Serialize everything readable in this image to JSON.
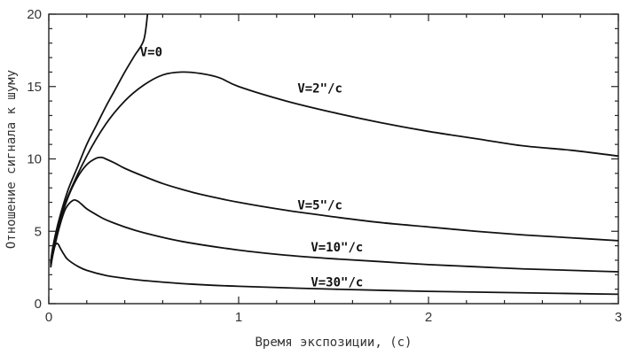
{
  "chart_data": {
    "type": "line",
    "title": "",
    "xlabel": "Время экспозиции, (с)",
    "ylabel": "Отношение сигнала к шуму",
    "xlim": [
      0,
      3
    ],
    "ylim": [
      0,
      20
    ],
    "x_ticks": [
      "0",
      "1",
      "2",
      "3"
    ],
    "y_ticks": [
      "0",
      "5",
      "10",
      "15",
      "20"
    ],
    "grid": false,
    "legend": "none",
    "series": [
      {
        "name": "V=0",
        "x": [
          0.01,
          0.02,
          0.05,
          0.1,
          0.15,
          0.2,
          0.25,
          0.3,
          0.35,
          0.4,
          0.45,
          0.5,
          0.52
        ],
        "y": [
          2.8,
          3.8,
          5.6,
          7.8,
          9.4,
          11.0,
          12.3,
          13.6,
          14.8,
          16.0,
          17.1,
          18.2,
          20.0
        ]
      },
      {
        "name": "V=2\"/с",
        "x": [
          0.01,
          0.02,
          0.05,
          0.1,
          0.2,
          0.3,
          0.4,
          0.5,
          0.6,
          0.7,
          0.8,
          0.9,
          1.0,
          1.25,
          1.5,
          1.75,
          2.0,
          2.25,
          2.5,
          2.75,
          3.0
        ],
        "y": [
          2.8,
          3.7,
          5.4,
          7.4,
          10.2,
          12.4,
          14.0,
          15.1,
          15.8,
          16.0,
          15.9,
          15.6,
          15.0,
          14.0,
          13.2,
          12.5,
          11.9,
          11.4,
          10.9,
          10.6,
          10.2
        ]
      },
      {
        "name": "V=5\"/с",
        "x": [
          0.01,
          0.02,
          0.05,
          0.1,
          0.15,
          0.2,
          0.25,
          0.28,
          0.3,
          0.35,
          0.4,
          0.5,
          0.6,
          0.7,
          0.8,
          1.0,
          1.25,
          1.5,
          1.75,
          2.0,
          2.25,
          2.5,
          2.75,
          3.0
        ],
        "y": [
          2.7,
          3.5,
          5.3,
          7.3,
          8.7,
          9.6,
          10.05,
          10.1,
          10.0,
          9.7,
          9.35,
          8.8,
          8.3,
          7.9,
          7.55,
          7.0,
          6.45,
          6.0,
          5.6,
          5.3,
          5.0,
          4.75,
          4.55,
          4.35
        ]
      },
      {
        "name": "V=10\"/с",
        "x": [
          0.01,
          0.02,
          0.05,
          0.08,
          0.1,
          0.13,
          0.15,
          0.17,
          0.2,
          0.25,
          0.3,
          0.4,
          0.5,
          0.7,
          1.0,
          1.25,
          1.5,
          1.75,
          2.0,
          2.25,
          2.5,
          2.75,
          3.0
        ],
        "y": [
          2.6,
          3.3,
          5.0,
          6.3,
          6.8,
          7.15,
          7.1,
          6.9,
          6.55,
          6.15,
          5.8,
          5.3,
          4.9,
          4.3,
          3.7,
          3.35,
          3.1,
          2.9,
          2.7,
          2.55,
          2.4,
          2.3,
          2.2
        ]
      },
      {
        "name": "V=30\"/с",
        "x": [
          0.01,
          0.02,
          0.03,
          0.04,
          0.05,
          0.06,
          0.08,
          0.1,
          0.15,
          0.2,
          0.3,
          0.4,
          0.5,
          0.75,
          1.0,
          1.5,
          2.0,
          2.5,
          3.0
        ],
        "y": [
          2.5,
          3.3,
          3.9,
          4.15,
          4.1,
          3.85,
          3.4,
          3.05,
          2.6,
          2.3,
          1.95,
          1.75,
          1.6,
          1.35,
          1.2,
          1.0,
          0.85,
          0.75,
          0.65
        ]
      }
    ],
    "series_labels": [
      {
        "text": "V=0",
        "at_x": 0.48,
        "at_y": 17.1
      },
      {
        "text": "V=2\"/с",
        "at_x": 1.31,
        "at_y": 14.6
      },
      {
        "text": "V=5\"/с",
        "at_x": 1.31,
        "at_y": 6.5
      },
      {
        "text": "V=10\"/с",
        "at_x": 1.38,
        "at_y": 3.6
      },
      {
        "text": "V=30\"/с",
        "at_x": 1.38,
        "at_y": 1.2
      }
    ]
  }
}
